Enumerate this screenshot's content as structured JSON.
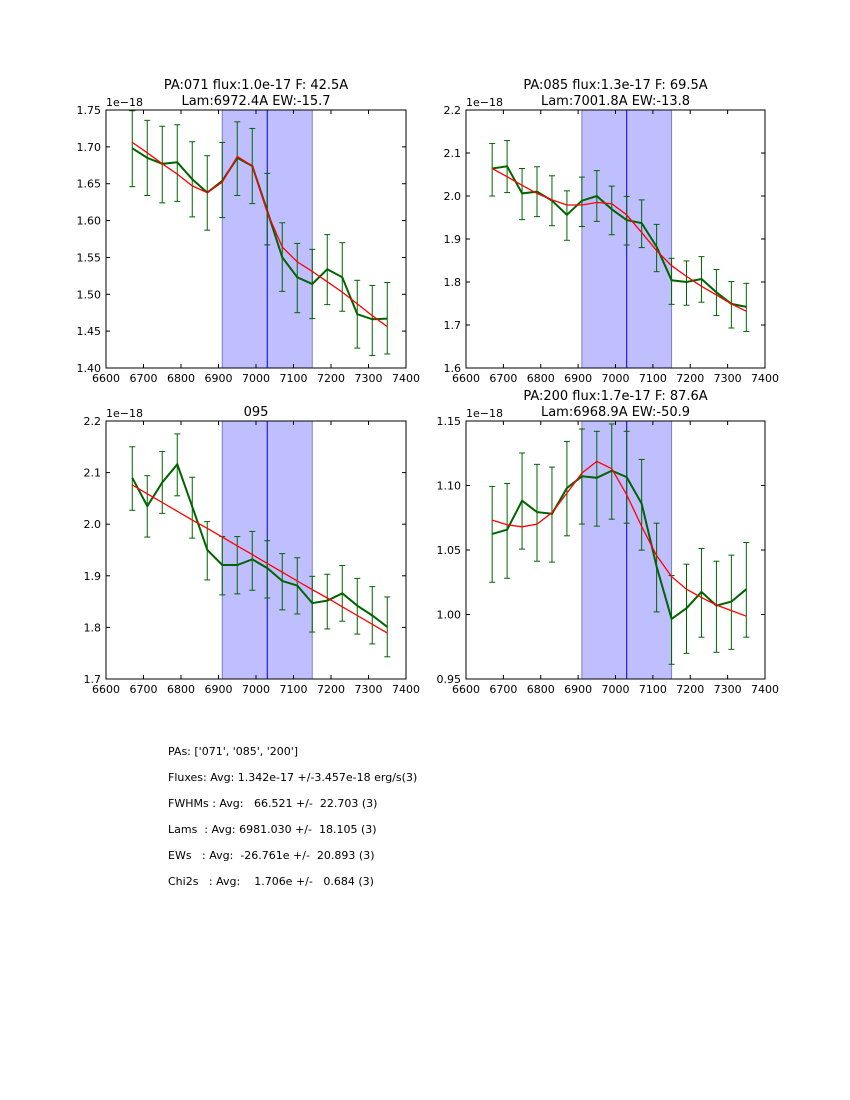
{
  "chart_data": [
    {
      "type": "line",
      "title": "PA:071 flux:1.0e-17 F: 42.5A\nLam:6972.4A EW:-15.7",
      "offset_label": "1e−18",
      "xlim": [
        6600,
        7400
      ],
      "ylim": [
        1.4,
        1.75
      ],
      "xticks": [
        6600,
        6700,
        6800,
        6900,
        7000,
        7100,
        7200,
        7300,
        7400
      ],
      "yticks": [
        1.4,
        1.45,
        1.5,
        1.55,
        1.6,
        1.65,
        1.7,
        1.75
      ],
      "ytick_labels": [
        "1.40",
        "1.45",
        "1.50",
        "1.55",
        "1.60",
        "1.65",
        "1.70",
        "1.75"
      ],
      "span": [
        6910,
        7150
      ],
      "vline": 7030,
      "x": [
        6670,
        6710,
        6750,
        6790,
        6830,
        6870,
        6910,
        6950,
        6990,
        7030,
        7070,
        7110,
        7150,
        7190,
        7230,
        7270,
        7310,
        7350
      ],
      "series": [
        {
          "name": "data",
          "color": "#006400",
          "values": [
            1.698,
            1.685,
            1.677,
            1.679,
            1.656,
            1.638,
            1.654,
            1.685,
            1.674,
            1.613,
            1.55,
            1.523,
            1.514,
            1.534,
            1.523,
            1.473,
            1.466,
            1.467
          ],
          "err_hi": [
            1.749,
            1.736,
            1.728,
            1.73,
            1.707,
            1.688,
            1.706,
            1.734,
            1.725,
            1.664,
            1.597,
            1.569,
            1.561,
            1.581,
            1.57,
            1.519,
            1.512,
            1.516
          ],
          "err_lo": [
            1.646,
            1.634,
            1.624,
            1.626,
            1.605,
            1.587,
            1.604,
            1.634,
            1.623,
            1.567,
            1.504,
            1.475,
            1.467,
            1.486,
            1.477,
            1.427,
            1.417,
            1.419
          ]
        },
        {
          "name": "fit",
          "color": "#ff0000",
          "values": [
            1.706,
            1.692,
            1.677,
            1.663,
            1.647,
            1.638,
            1.652,
            1.687,
            1.674,
            1.611,
            1.564,
            1.544,
            1.531,
            1.517,
            1.503,
            1.487,
            1.471,
            1.456
          ]
        }
      ]
    },
    {
      "type": "line",
      "title": "PA:085 flux:1.3e-17 F: 69.5A\nLam:7001.8A EW:-13.8",
      "offset_label": "1e−18",
      "xlim": [
        6600,
        7400
      ],
      "ylim": [
        1.6,
        2.2
      ],
      "xticks": [
        6600,
        6700,
        6800,
        6900,
        7000,
        7100,
        7200,
        7300,
        7400
      ],
      "yticks": [
        1.6,
        1.7,
        1.8,
        1.9,
        2.0,
        2.1,
        2.2
      ],
      "ytick_labels": [
        "1.6",
        "1.7",
        "1.8",
        "1.9",
        "2.0",
        "2.1",
        "2.2"
      ],
      "span": [
        6910,
        7150
      ],
      "vline": 7030,
      "x": [
        6670,
        6710,
        6750,
        6790,
        6830,
        6870,
        6910,
        6950,
        6990,
        7030,
        7070,
        7110,
        7150,
        7190,
        7230,
        7270,
        7310,
        7350
      ],
      "series": [
        {
          "name": "data",
          "color": "#006400",
          "values": [
            2.064,
            2.069,
            2.006,
            2.01,
            1.989,
            1.956,
            1.989,
            2.0,
            1.969,
            1.944,
            1.937,
            1.882,
            1.804,
            1.8,
            1.807,
            1.776,
            1.749,
            1.742
          ],
          "err_hi": [
            2.122,
            2.129,
            2.064,
            2.068,
            2.047,
            2.012,
            2.044,
            2.059,
            2.023,
            1.999,
            1.991,
            1.934,
            1.855,
            1.849,
            1.859,
            1.829,
            1.801,
            1.797
          ],
          "err_lo": [
            2.0,
            2.008,
            1.945,
            1.952,
            1.931,
            1.897,
            1.929,
            1.941,
            1.91,
            1.886,
            1.88,
            1.824,
            1.748,
            1.746,
            1.753,
            1.722,
            1.693,
            1.685
          ]
        },
        {
          "name": "fit",
          "color": "#ff0000",
          "values": [
            2.064,
            2.045,
            2.025,
            2.006,
            1.991,
            1.979,
            1.979,
            1.985,
            1.982,
            1.956,
            1.915,
            1.873,
            1.838,
            1.813,
            1.79,
            1.77,
            1.749,
            1.732
          ]
        }
      ]
    },
    {
      "type": "line",
      "title": "095",
      "offset_label": "1e−18",
      "xlim": [
        6600,
        7400
      ],
      "ylim": [
        1.7,
        2.2
      ],
      "xticks": [
        6600,
        6700,
        6800,
        6900,
        7000,
        7100,
        7200,
        7300,
        7400
      ],
      "yticks": [
        1.7,
        1.8,
        1.9,
        2.0,
        2.1,
        2.2
      ],
      "ytick_labels": [
        "1.7",
        "1.8",
        "1.9",
        "2.0",
        "2.1",
        "2.2"
      ],
      "span": [
        6910,
        7150
      ],
      "vline": 7030,
      "x": [
        6670,
        6710,
        6750,
        6790,
        6830,
        6870,
        6910,
        6950,
        6990,
        7030,
        7070,
        7110,
        7150,
        7190,
        7230,
        7270,
        7310,
        7350
      ],
      "series": [
        {
          "name": "data",
          "color": "#006400",
          "values": [
            2.09,
            2.035,
            2.081,
            2.116,
            2.034,
            1.95,
            1.921,
            1.921,
            1.932,
            1.915,
            1.89,
            1.881,
            1.847,
            1.852,
            1.866,
            1.842,
            1.823,
            1.801
          ],
          "err_hi": [
            2.15,
            2.094,
            2.141,
            2.175,
            2.091,
            2.005,
            1.976,
            1.976,
            1.986,
            1.968,
            1.943,
            1.935,
            1.899,
            1.903,
            1.92,
            1.895,
            1.879,
            1.859
          ],
          "err_lo": [
            2.027,
            1.975,
            2.021,
            2.055,
            1.973,
            1.892,
            1.863,
            1.865,
            1.872,
            1.857,
            1.834,
            1.826,
            1.791,
            1.797,
            1.812,
            1.787,
            1.768,
            1.743
          ]
        },
        {
          "name": "fit",
          "color": "#ff0000",
          "values": [
            2.076,
            2.059,
            2.042,
            2.025,
            2.008,
            1.992,
            1.975,
            1.958,
            1.941,
            1.924,
            1.907,
            1.89,
            1.873,
            1.857,
            1.84,
            1.823,
            1.806,
            1.789
          ]
        }
      ]
    },
    {
      "type": "line",
      "title": "PA:200 flux:1.7e-17 F: 87.6A\nLam:6968.9A EW:-50.9",
      "offset_label": "1e−18",
      "xlim": [
        6600,
        7400
      ],
      "ylim": [
        0.95,
        1.15
      ],
      "xticks": [
        6600,
        6700,
        6800,
        6900,
        7000,
        7100,
        7200,
        7300,
        7400
      ],
      "yticks": [
        0.95,
        1.0,
        1.05,
        1.1,
        1.15
      ],
      "ytick_labels": [
        "0.95",
        "1.00",
        "1.05",
        "1.10",
        "1.15"
      ],
      "span": [
        6910,
        7150
      ],
      "vline": 7030,
      "x": [
        6670,
        6710,
        6750,
        6790,
        6830,
        6870,
        6910,
        6950,
        6990,
        7030,
        7070,
        7110,
        7150,
        7190,
        7230,
        7270,
        7310,
        7350
      ],
      "series": [
        {
          "name": "data",
          "color": "#006400",
          "values": [
            1.0625,
            1.0657,
            1.0882,
            1.0794,
            1.0781,
            1.098,
            1.1071,
            1.106,
            1.1115,
            1.1065,
            1.0858,
            1.0372,
            0.9966,
            1.0049,
            1.0175,
            1.0069,
            1.01,
            1.0196
          ],
          "err_hi": [
            1.0993,
            1.1016,
            1.1252,
            1.1164,
            1.1143,
            1.1342,
            1.1438,
            1.142,
            1.1477,
            1.142,
            1.1202,
            1.0708,
            1.0302,
            1.039,
            1.0512,
            1.0413,
            1.046,
            1.0558
          ],
          "err_lo": [
            1.025,
            1.0281,
            1.0507,
            1.0413,
            1.0406,
            1.061,
            1.0701,
            1.0685,
            1.0739,
            1.0708,
            1.0499,
            1.002,
            0.9614,
            0.9699,
            0.9824,
            0.9707,
            0.973,
            0.9824
          ]
        },
        {
          "name": "fit",
          "color": "#ff0000",
          "values": [
            1.0732,
            1.0695,
            1.068,
            1.0701,
            1.0789,
            1.0941,
            1.1096,
            1.1187,
            1.113,
            1.0928,
            1.0682,
            1.0457,
            1.0294,
            1.0196,
            1.0131,
            1.0074,
            1.003,
            0.9987
          ]
        }
      ]
    }
  ],
  "colors": {
    "span_fill": "#bfbfff",
    "span_edge": "#7f7fbf",
    "vline": "#0000cc",
    "data": "#006400",
    "fit": "#ff0000"
  },
  "summary": {
    "pas": "PAs: ['071', '085', '200']",
    "fluxes": "Fluxes: Avg: 1.342e-17 +/-3.457e-18 erg/s(3)",
    "fwhms": "FWHMs : Avg:   66.521 +/-  22.703 (3)",
    "lams": "Lams  : Avg: 6981.030 +/-  18.105 (3)",
    "ews": "EWs   : Avg:  -26.761e +/-  20.893 (3)",
    "chi2s": "Chi2s   : Avg:    1.706e +/-   0.684 (3)"
  }
}
